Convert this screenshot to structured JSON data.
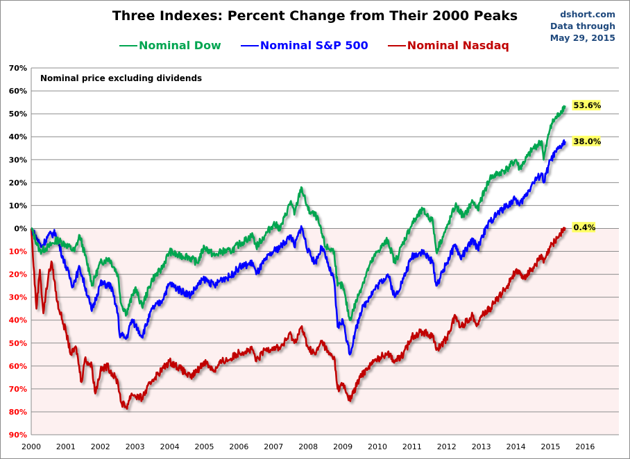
{
  "header": {
    "title": "Three Indexes: Percent Change from Their 2000 Peaks",
    "source": "dshort.com",
    "data_through_label": "Data through",
    "data_date": "May 29, 2015"
  },
  "chart_data": {
    "type": "line",
    "title": "Three Indexes: Percent Change from Their 2000 Peaks",
    "annotation": "Nominal price excluding dividends",
    "xlabel": "",
    "ylabel": "",
    "xlim": [
      2000,
      2016.5
    ],
    "ylim": [
      -90,
      70
    ],
    "grid": true,
    "legend_position": "top",
    "negative_region_fill": "#fdf0f0",
    "x_tick_labels": [
      "2000",
      "2001",
      "2002",
      "2003",
      "2004",
      "2005",
      "2006",
      "2007",
      "2008",
      "2009",
      "2010",
      "2011",
      "2012",
      "2013",
      "2014",
      "2015",
      "2016"
    ],
    "y_ticks": [
      70,
      60,
      50,
      40,
      30,
      20,
      10,
      0,
      -10,
      -20,
      -30,
      -40,
      -50,
      -60,
      -70,
      -80,
      -90
    ],
    "y_tick_labels": [
      "70%",
      "60%",
      "50%",
      "40%",
      "30%",
      "20%",
      "10%",
      "0%",
      "10%",
      "20%",
      "30%",
      "40%",
      "50%",
      "60%",
      "70%",
      "80%",
      "90%"
    ],
    "y_tick_colors": {
      "positive": "#000000",
      "negative": "#ff0000"
    },
    "series": [
      {
        "name": "Nominal Dow",
        "color": "#00a550",
        "end_label": "53.6%",
        "x": [
          2000.0,
          2000.25,
          2000.5,
          2000.75,
          2001.0,
          2001.25,
          2001.4,
          2001.7,
          2001.75,
          2002.0,
          2002.25,
          2002.5,
          2002.6,
          2002.75,
          2003.0,
          2003.2,
          2003.5,
          2003.75,
          2004.0,
          2004.25,
          2004.5,
          2004.8,
          2005.0,
          2005.3,
          2005.5,
          2005.75,
          2006.0,
          2006.4,
          2006.5,
          2006.75,
          2007.0,
          2007.2,
          2007.5,
          2007.6,
          2007.8,
          2008.0,
          2008.25,
          2008.5,
          2008.75,
          2008.85,
          2009.0,
          2009.2,
          2009.5,
          2009.75,
          2010.0,
          2010.3,
          2010.5,
          2010.75,
          2011.0,
          2011.3,
          2011.6,
          2011.7,
          2012.0,
          2012.25,
          2012.5,
          2012.75,
          2012.9,
          2013.0,
          2013.25,
          2013.5,
          2013.75,
          2014.0,
          2014.1,
          2014.5,
          2014.75,
          2014.8,
          2015.0,
          2015.25,
          2015.42
        ],
        "y": [
          0,
          -10,
          -8,
          -5,
          -7,
          -10,
          -3,
          -20,
          -25,
          -15,
          -13,
          -20,
          -33,
          -37,
          -26,
          -34,
          -22,
          -18,
          -10,
          -12,
          -12,
          -15,
          -8,
          -12,
          -10,
          -10,
          -7,
          -3,
          -8,
          -3,
          2,
          0,
          12,
          6,
          18,
          8,
          5,
          -8,
          -10,
          -25,
          -25,
          -40,
          -27,
          -17,
          -10,
          -5,
          -15,
          -6,
          2,
          8,
          3,
          -10,
          0,
          10,
          5,
          12,
          8,
          13,
          22,
          24,
          26,
          30,
          26,
          35,
          38,
          30,
          45,
          50,
          53.6
        ]
      },
      {
        "name": "Nominal S&P 500",
        "color": "#0000ff",
        "end_label": "38.0%",
        "x": [
          2000.0,
          2000.3,
          2000.5,
          2000.7,
          2000.9,
          2001.2,
          2001.4,
          2001.7,
          2001.75,
          2002.0,
          2002.3,
          2002.5,
          2002.55,
          2002.75,
          2002.9,
          2003.0,
          2003.2,
          2003.5,
          2003.75,
          2004.0,
          2004.3,
          2004.6,
          2004.8,
          2005.0,
          2005.3,
          2005.5,
          2005.75,
          2006.0,
          2006.4,
          2006.5,
          2006.75,
          2007.0,
          2007.2,
          2007.5,
          2007.6,
          2007.8,
          2008.0,
          2008.2,
          2008.4,
          2008.6,
          2008.75,
          2008.85,
          2009.0,
          2009.2,
          2009.5,
          2009.75,
          2010.0,
          2010.3,
          2010.5,
          2010.75,
          2011.0,
          2011.3,
          2011.6,
          2011.7,
          2012.0,
          2012.25,
          2012.4,
          2012.75,
          2012.9,
          2013.0,
          2013.25,
          2013.5,
          2013.75,
          2014.0,
          2014.1,
          2014.5,
          2014.75,
          2014.8,
          2015.0,
          2015.25,
          2015.42
        ],
        "y": [
          0,
          -8,
          -3,
          -2,
          -12,
          -25,
          -17,
          -33,
          -36,
          -24,
          -25,
          -37,
          -46,
          -48,
          -40,
          -42,
          -47,
          -35,
          -32,
          -24,
          -27,
          -29,
          -25,
          -22,
          -25,
          -22,
          -21,
          -17,
          -15,
          -20,
          -14,
          -10,
          -8,
          -3,
          -8,
          1,
          -10,
          -15,
          -8,
          -17,
          -23,
          -43,
          -40,
          -55,
          -37,
          -30,
          -25,
          -20,
          -30,
          -22,
          -12,
          -10,
          -15,
          -25,
          -15,
          -7,
          -13,
          -5,
          -9,
          -4,
          3,
          7,
          10,
          13,
          10,
          20,
          24,
          20,
          30,
          35,
          38.0
        ]
      },
      {
        "name": "Nominal Nasdaq",
        "color": "#c00000",
        "end_label": "0.4%",
        "x": [
          2000.0,
          2000.15,
          2000.25,
          2000.35,
          2000.5,
          2000.6,
          2000.75,
          2000.9,
          2001.0,
          2001.15,
          2001.3,
          2001.45,
          2001.55,
          2001.75,
          2001.85,
          2002.0,
          2002.2,
          2002.5,
          2002.6,
          2002.75,
          2002.9,
          2003.0,
          2003.2,
          2003.5,
          2003.75,
          2004.0,
          2004.3,
          2004.6,
          2004.8,
          2005.0,
          2005.3,
          2005.5,
          2005.75,
          2006.0,
          2006.4,
          2006.5,
          2006.75,
          2007.0,
          2007.2,
          2007.5,
          2007.6,
          2007.8,
          2008.0,
          2008.2,
          2008.4,
          2008.6,
          2008.75,
          2008.85,
          2009.0,
          2009.2,
          2009.5,
          2009.75,
          2010.0,
          2010.3,
          2010.5,
          2010.75,
          2011.0,
          2011.3,
          2011.6,
          2011.7,
          2012.0,
          2012.25,
          2012.4,
          2012.75,
          2012.9,
          2013.0,
          2013.25,
          2013.5,
          2013.75,
          2014.0,
          2014.2,
          2014.5,
          2014.75,
          2014.8,
          2015.0,
          2015.25,
          2015.42
        ],
        "y": [
          0,
          -35,
          -18,
          -37,
          -20,
          -15,
          -32,
          -40,
          -45,
          -55,
          -52,
          -67,
          -57,
          -60,
          -72,
          -62,
          -60,
          -67,
          -76,
          -78,
          -72,
          -73,
          -74,
          -66,
          -62,
          -58,
          -61,
          -65,
          -62,
          -58,
          -62,
          -58,
          -57,
          -54,
          -53,
          -58,
          -53,
          -52,
          -52,
          -46,
          -50,
          -43,
          -52,
          -55,
          -49,
          -55,
          -56,
          -70,
          -68,
          -75,
          -65,
          -60,
          -57,
          -54,
          -58,
          -55,
          -47,
          -45,
          -47,
          -53,
          -48,
          -38,
          -43,
          -38,
          -42,
          -38,
          -35,
          -30,
          -25,
          -18,
          -22,
          -17,
          -12,
          -15,
          -8,
          -3,
          0.4
        ]
      }
    ]
  }
}
